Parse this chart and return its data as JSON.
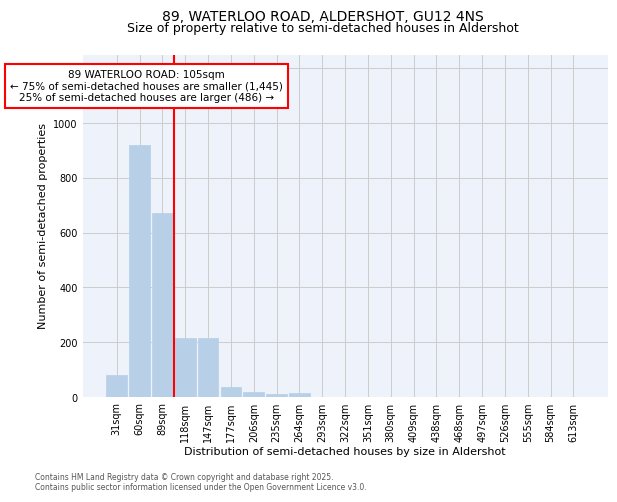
{
  "title_line1": "89, WATERLOO ROAD, ALDERSHOT, GU12 4NS",
  "title_line2": "Size of property relative to semi-detached houses in Aldershot",
  "xlabel": "Distribution of semi-detached houses by size in Aldershot",
  "ylabel": "Number of semi-detached properties",
  "categories": [
    "31sqm",
    "60sqm",
    "89sqm",
    "118sqm",
    "147sqm",
    "177sqm",
    "206sqm",
    "235sqm",
    "264sqm",
    "293sqm",
    "322sqm",
    "351sqm",
    "380sqm",
    "409sqm",
    "438sqm",
    "468sqm",
    "497sqm",
    "526sqm",
    "555sqm",
    "584sqm",
    "613sqm"
  ],
  "values": [
    80,
    920,
    670,
    215,
    215,
    35,
    20,
    12,
    15,
    0,
    0,
    0,
    0,
    0,
    0,
    0,
    0,
    0,
    0,
    0,
    0
  ],
  "bar_color": "#b8cfe8",
  "bar_edgecolor": "#b8cfe8",
  "vline_color": "red",
  "annotation_text": "89 WATERLOO ROAD: 105sqm\n← 75% of semi-detached houses are smaller (1,445)\n25% of semi-detached houses are larger (486) →",
  "annotation_box_color": "red",
  "annotation_bg": "white",
  "ylim": [
    0,
    1250
  ],
  "yticks": [
    0,
    200,
    400,
    600,
    800,
    1000,
    1200
  ],
  "grid_color": "#cccccc",
  "bg_color": "#eef2fa",
  "footer_text": "Contains HM Land Registry data © Crown copyright and database right 2025.\nContains public sector information licensed under the Open Government Licence v3.0.",
  "title_fontsize": 10,
  "subtitle_fontsize": 9,
  "tick_fontsize": 7,
  "ylabel_fontsize": 8,
  "xlabel_fontsize": 8,
  "annotation_fontsize": 7.5
}
